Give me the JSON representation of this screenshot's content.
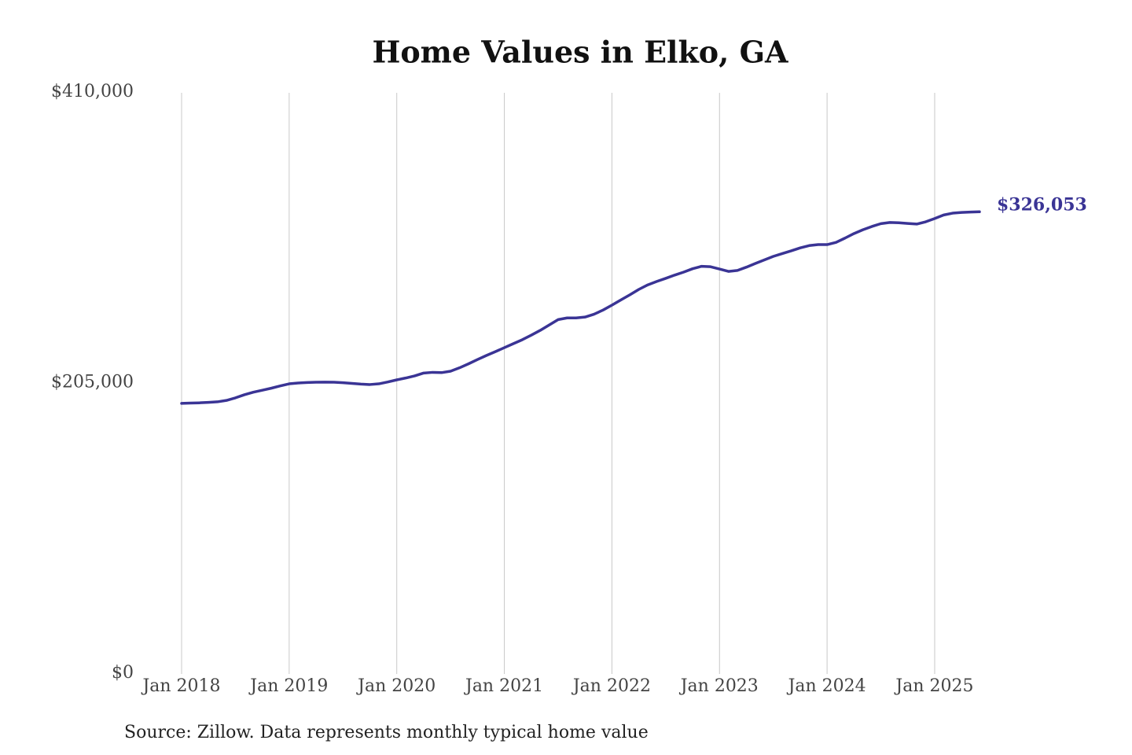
{
  "chart_data": {
    "type": "line",
    "title": "Home Values in Elko, GA",
    "source": "Source: Zillow. Data represents monthly typical home value",
    "x": [
      "2018-01",
      "2018-02",
      "2018-03",
      "2018-04",
      "2018-05",
      "2018-06",
      "2018-07",
      "2018-08",
      "2018-09",
      "2018-10",
      "2018-11",
      "2018-12",
      "2019-01",
      "2019-02",
      "2019-03",
      "2019-04",
      "2019-05",
      "2019-06",
      "2019-07",
      "2019-08",
      "2019-09",
      "2019-10",
      "2019-11",
      "2019-12",
      "2020-01",
      "2020-02",
      "2020-03",
      "2020-04",
      "2020-05",
      "2020-06",
      "2020-07",
      "2020-08",
      "2020-09",
      "2020-10",
      "2020-11",
      "2020-12",
      "2021-01",
      "2021-02",
      "2021-03",
      "2021-04",
      "2021-05",
      "2021-06",
      "2021-07",
      "2021-08",
      "2021-09",
      "2021-10",
      "2021-11",
      "2021-12",
      "2022-01",
      "2022-02",
      "2022-03",
      "2022-04",
      "2022-05",
      "2022-06",
      "2022-07",
      "2022-08",
      "2022-09",
      "2022-10",
      "2022-11",
      "2022-12",
      "2023-01",
      "2023-02",
      "2023-03",
      "2023-04",
      "2023-05",
      "2023-06",
      "2023-07",
      "2023-08",
      "2023-09",
      "2023-10",
      "2023-11",
      "2023-12",
      "2024-01",
      "2024-02",
      "2024-03",
      "2024-04",
      "2024-05",
      "2024-06",
      "2024-07",
      "2024-08",
      "2024-09",
      "2024-10",
      "2024-11",
      "2024-12",
      "2025-01",
      "2025-02",
      "2025-03",
      "2025-04",
      "2025-05",
      "2025-06"
    ],
    "series": [
      {
        "name": "Home value",
        "color": "#3a3495",
        "values": [
          190900,
          191100,
          191300,
          191600,
          192000,
          193000,
          194800,
          197000,
          198800,
          200200,
          201600,
          203200,
          204700,
          205300,
          205600,
          205800,
          205900,
          205800,
          205500,
          205000,
          204500,
          204200,
          204700,
          206000,
          207500,
          208800,
          210300,
          212300,
          212800,
          212600,
          213600,
          216000,
          218800,
          221800,
          224700,
          227400,
          230200,
          233000,
          235800,
          239000,
          242400,
          246200,
          250000,
          251200,
          251200,
          251800,
          253800,
          256700,
          260200,
          263900,
          267500,
          271300,
          274500,
          276900,
          279100,
          281400,
          283500,
          285900,
          287600,
          287300,
          285700,
          284000,
          284700,
          287000,
          289600,
          292100,
          294600,
          296600,
          298500,
          300600,
          302200,
          302900,
          302900,
          304500,
          307500,
          310700,
          313400,
          315700,
          317700,
          318500,
          318300,
          317800,
          317400,
          319000,
          321300,
          323800,
          325100,
          325600,
          325900,
          326053
        ],
        "value_labels": [
          null,
          null,
          null,
          null,
          null,
          null,
          null,
          null,
          null,
          null,
          null,
          null,
          null,
          null,
          null,
          null,
          null,
          null,
          null,
          null,
          null,
          null,
          null,
          null,
          null,
          null,
          null,
          null,
          null,
          null,
          null,
          null,
          null,
          null,
          null,
          null,
          null,
          null,
          null,
          null,
          null,
          null,
          null,
          null,
          null,
          null,
          null,
          null,
          null,
          null,
          null,
          null,
          null,
          null,
          null,
          null,
          null,
          null,
          null,
          null,
          null,
          null,
          null,
          null,
          null,
          null,
          null,
          null,
          null,
          null,
          null,
          null,
          null,
          null,
          null,
          null,
          null,
          null,
          null,
          null,
          null,
          null,
          null,
          null,
          null,
          null,
          null,
          null,
          null,
          "$326,053"
        ]
      }
    ],
    "xlim": [
      "2018-01",
      "2025-06"
    ],
    "xticks": [
      {
        "value": "2018-01",
        "label": "Jan 2018"
      },
      {
        "value": "2019-01",
        "label": "Jan 2019"
      },
      {
        "value": "2020-01",
        "label": "Jan 2020"
      },
      {
        "value": "2021-01",
        "label": "Jan 2021"
      },
      {
        "value": "2022-01",
        "label": "Jan 2022"
      },
      {
        "value": "2023-01",
        "label": "Jan 2023"
      },
      {
        "value": "2024-01",
        "label": "Jan 2024"
      },
      {
        "value": "2025-01",
        "label": "Jan 2025"
      }
    ],
    "ylim": [
      0,
      410000
    ],
    "yticks": [
      {
        "value": 0,
        "label": "$0"
      },
      {
        "value": 205000,
        "label": "$205,000"
      },
      {
        "value": 410000,
        "label": "$410,000"
      }
    ],
    "grid": "x"
  }
}
